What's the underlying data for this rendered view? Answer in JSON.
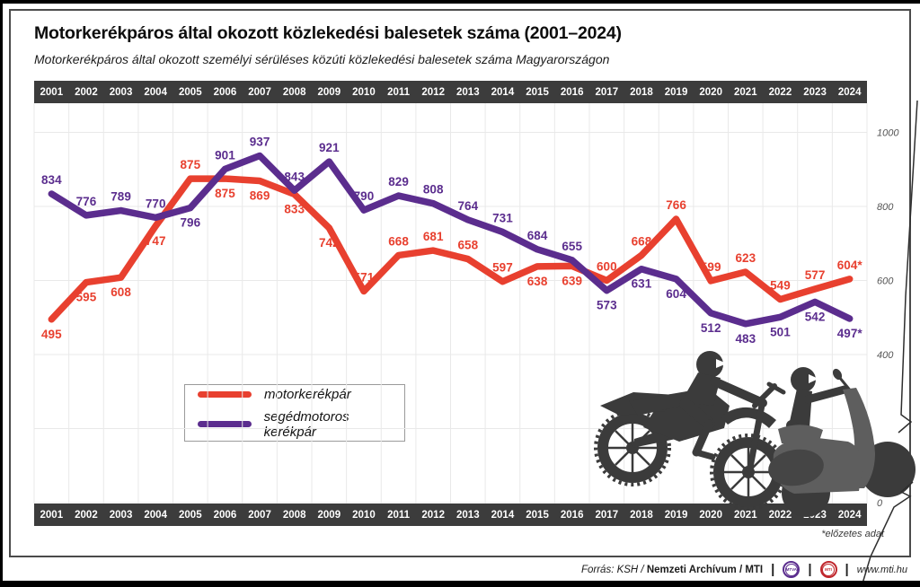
{
  "header": {
    "title": "Motorkerékpáros által okozott közlekedési balesetek száma (2001–2024)",
    "subtitle": "Motorkerékpáros által okozott személyi sérüléses közúti közlekedési balesetek száma Magyarországon"
  },
  "axis": {
    "years": [
      "2001",
      "2002",
      "2003",
      "2004",
      "2005",
      "2006",
      "2007",
      "2008",
      "2009",
      "2010",
      "2011",
      "2012",
      "2013",
      "2014",
      "2015",
      "2016",
      "2017",
      "2018",
      "2019",
      "2020",
      "2021",
      "2022",
      "2023",
      "2024"
    ],
    "yticks": [
      {
        "label": "1000",
        "value": 1000
      },
      {
        "label": "800",
        "value": 800
      },
      {
        "label": "600",
        "value": 600
      },
      {
        "label": "400",
        "value": 400
      },
      {
        "label": "0",
        "value": 0
      }
    ]
  },
  "chart_data": {
    "type": "line",
    "title": "Motorkerékpáros által okozott közlekedési balesetek száma (2001–2024)",
    "categories": [
      2001,
      2002,
      2003,
      2004,
      2005,
      2006,
      2007,
      2008,
      2009,
      2010,
      2011,
      2012,
      2013,
      2014,
      2015,
      2016,
      2017,
      2018,
      2019,
      2020,
      2021,
      2022,
      2023,
      2024
    ],
    "ylim": [
      0,
      1050
    ],
    "grid": true,
    "legend_position": "bottom-left",
    "series": [
      {
        "name": "motorkerékpár",
        "color": "#e8402f",
        "values": [
          495,
          595,
          608,
          747,
          875,
          875,
          869,
          833,
          742,
          571,
          668,
          681,
          658,
          597,
          638,
          639,
          600,
          668,
          766,
          599,
          623,
          549,
          577,
          604
        ],
        "labels": [
          "495",
          "595",
          "608",
          "747",
          "875",
          "875",
          "869",
          "833",
          "742",
          "571",
          "668",
          "681",
          "658",
          "597",
          "638",
          "639",
          "600",
          "668",
          "766",
          "599",
          "623",
          "549",
          "577",
          "604*"
        ],
        "label_side": [
          "b",
          "b",
          "b",
          "b",
          "a",
          "b",
          "b",
          "b",
          "b",
          "a",
          "a",
          "a",
          "a",
          "a",
          "b",
          "b",
          "a",
          "a",
          "a",
          "a",
          "a",
          "a",
          "a",
          "a"
        ]
      },
      {
        "name": "segédmotoros kerékpár",
        "color": "#5b2d8e",
        "values": [
          834,
          776,
          789,
          770,
          796,
          901,
          937,
          843,
          921,
          790,
          829,
          808,
          764,
          731,
          684,
          655,
          573,
          631,
          604,
          512,
          483,
          501,
          542,
          497
        ],
        "labels": [
          "834",
          "776",
          "789",
          "770",
          "796",
          "901",
          "937",
          "843",
          "921",
          "790",
          "829",
          "808",
          "764",
          "731",
          "684",
          "655",
          "573",
          "631",
          "604",
          "512",
          "483",
          "501",
          "542",
          "497*"
        ],
        "label_side": [
          "a",
          "a",
          "a",
          "a",
          "b",
          "a",
          "a",
          "a",
          "a",
          "a",
          "a",
          "a",
          "a",
          "a",
          "a",
          "a",
          "b",
          "b",
          "b",
          "b",
          "b",
          "b",
          "b",
          "b"
        ]
      }
    ]
  },
  "legend": {
    "items": [
      {
        "label": "motorkerékpár",
        "color": "#e8402f"
      },
      {
        "label": "segédmotoros kerékpár",
        "color": "#5b2d8e"
      }
    ]
  },
  "note": "*előzetes adat",
  "footer": {
    "source_prefix": "Forrás: KSH /",
    "source_bold": "Nemzeti Archívum",
    "source_suffix": "/ MTI",
    "sep": "|",
    "logo_mtva": "MTVA",
    "logo_mti": "MTI",
    "url": "www.mti.hu"
  },
  "colors": {
    "accent_red": "#e8402f",
    "accent_purple": "#5b2d8e",
    "year_bar_bg": "#3c3c3c",
    "grid": "#e9e9e9",
    "tick_text": "#555555",
    "silhouette_dark": "#3b3b3b",
    "silhouette_gray": "#5e5e5e"
  }
}
